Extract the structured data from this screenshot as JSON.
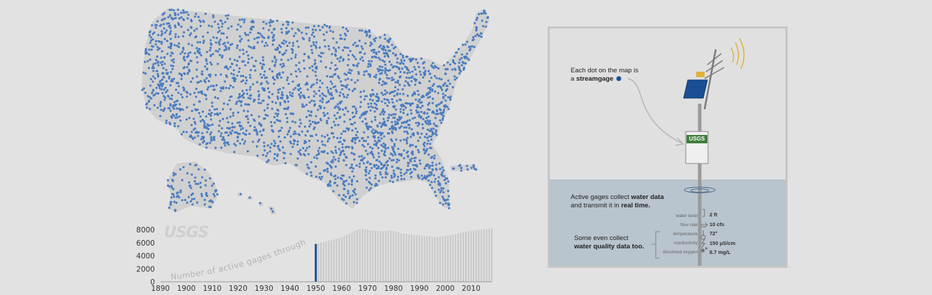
{
  "logo": {
    "text": "USGS"
  },
  "map": {
    "name": "United States streamgage map",
    "dot_color": "#4a7cc0",
    "land_color": "#d0d0d0"
  },
  "chart_data": {
    "type": "bar",
    "title": "",
    "curve_label": "Number of active gages through time",
    "xlabel": "",
    "ylabel": "",
    "x_range": [
      1890,
      2018
    ],
    "ylim": [
      0,
      8000
    ],
    "y_ticks": [
      "0",
      "2000",
      "4000",
      "6000",
      "8000"
    ],
    "x_ticks": [
      "1890",
      "1900",
      "1910",
      "1920",
      "1930",
      "1940",
      "1950",
      "1960",
      "1970",
      "1980",
      "1990",
      "2000",
      "2010"
    ],
    "highlight_year": 1950,
    "highlight_value": 5800,
    "bar_color": "#c8c8c8",
    "highlight_color": "#1a4f96",
    "series": [
      {
        "x": [
          1950,
          1951,
          1952,
          1953,
          1954,
          1955,
          1956,
          1957,
          1958,
          1959,
          1960,
          1961,
          1962,
          1963,
          1964,
          1965,
          1966,
          1967,
          1968,
          1969,
          1970,
          1971,
          1972,
          1973,
          1974,
          1975,
          1976,
          1977,
          1978,
          1979,
          1980,
          1981,
          1982,
          1983,
          1984,
          1985,
          1986,
          1987,
          1988,
          1989,
          1990,
          1991,
          1992,
          1993,
          1994,
          1995,
          1996,
          1997,
          1998,
          1999,
          2000,
          2001,
          2002,
          2003,
          2004,
          2005,
          2006,
          2007,
          2008,
          2009,
          2010,
          2011,
          2012,
          2013,
          2014,
          2015,
          2016,
          2017,
          2018
        ],
        "values": [
          5800,
          5900,
          6000,
          6100,
          6200,
          6300,
          6400,
          6500,
          6600,
          6700,
          6800,
          7000,
          7200,
          7400,
          7600,
          7800,
          7950,
          8100,
          8100,
          8050,
          8000,
          7900,
          7850,
          7800,
          7800,
          7750,
          7750,
          7800,
          7850,
          7850,
          7800,
          7700,
          7600,
          7450,
          7400,
          7350,
          7300,
          7250,
          7200,
          7150,
          7100,
          7050,
          7000,
          7000,
          6950,
          6900,
          6900,
          6900,
          6950,
          7000,
          7050,
          7100,
          7150,
          7200,
          7300,
          7400,
          7500,
          7600,
          7700,
          7750,
          7800,
          7850,
          7900,
          7950,
          8000,
          8050,
          8100,
          8150,
          8200
        ]
      }
    ]
  },
  "panel": {
    "callout_line1": "Each dot on the map is",
    "callout_prefix": "a ",
    "callout_bold": "streamgage",
    "sign_text": "USGS",
    "active_prefix": "Active gages collect ",
    "active_bold1": "water data",
    "active_mid": "and transmit it in ",
    "active_bold2": "real time.",
    "quality_line1": "Some even collect",
    "quality_bold": "water quality data too.",
    "measurements": [
      {
        "label": "water level",
        "value": "2 ft"
      },
      {
        "label": "flow rate",
        "value": "10 cfs"
      },
      {
        "label": "temperature",
        "value": "72°"
      },
      {
        "label": "conductivity",
        "value": "150 μS/cm"
      },
      {
        "label": "dissolved oxygen",
        "value": "8.7 mg/L"
      }
    ],
    "water_color": "#b8c4ce",
    "accent_blue": "#1a4f96",
    "sign_green": "#3f7d3c",
    "signal_color": "#e0b23a"
  }
}
